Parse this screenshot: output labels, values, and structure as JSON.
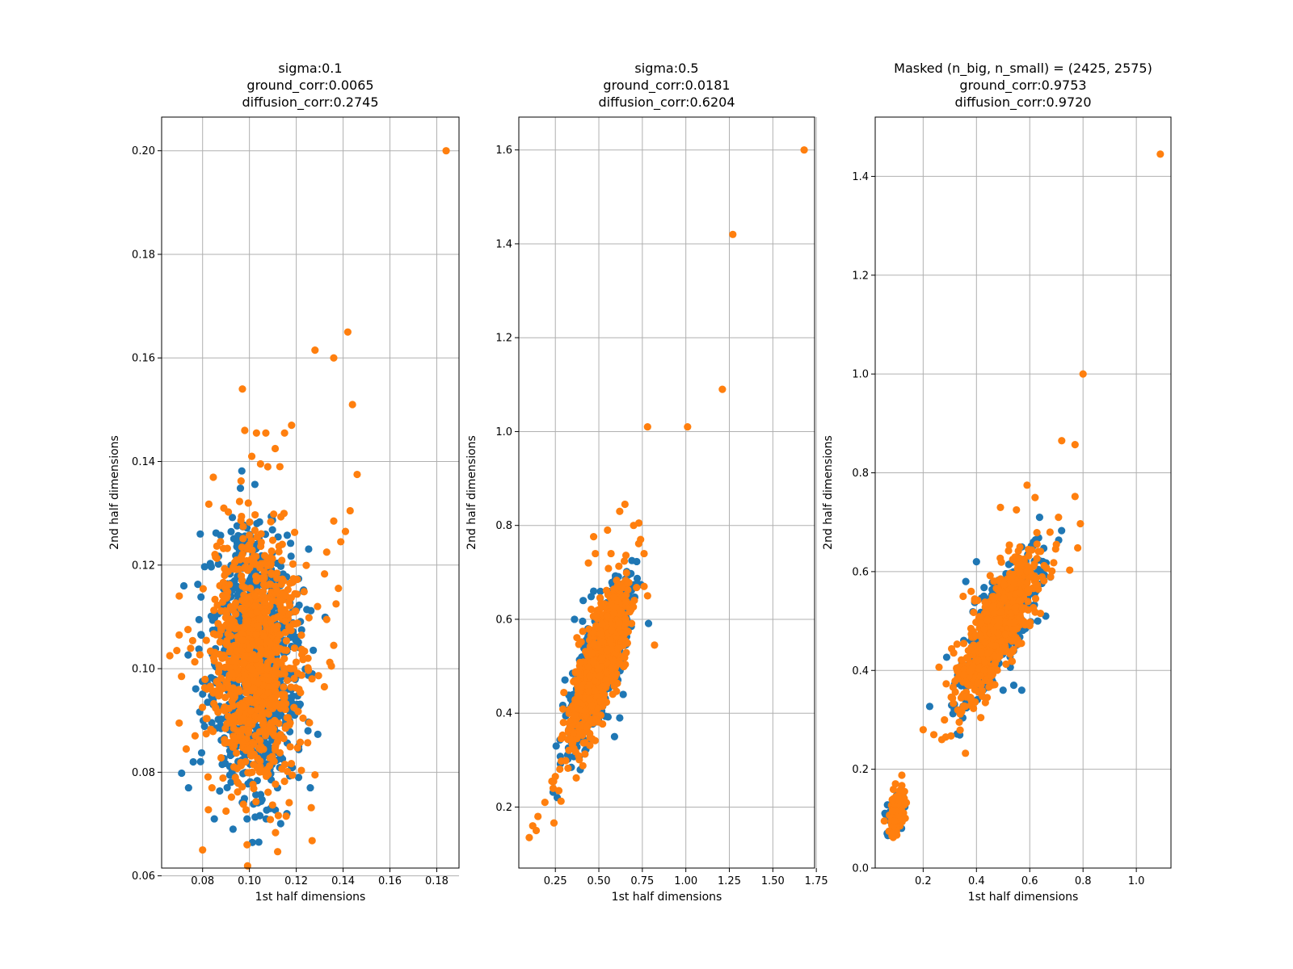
{
  "colors": {
    "blue": "#1f77b4",
    "orange": "#ff7f0e",
    "grid": "#b0b0b0",
    "frame": "#000000"
  },
  "chart_data": [
    {
      "type": "scatter",
      "title_lines": [
        "sigma:0.1",
        "ground_corr:0.0065",
        "diffusion_corr:0.2745"
      ],
      "xlabel": "1st half dimensions",
      "ylabel": "2nd half dimensions",
      "xlim": [
        0.0625,
        0.1895
      ],
      "ylim": [
        0.0615,
        0.2065
      ],
      "xticks": [
        0.08,
        0.1,
        0.12,
        0.14,
        0.16,
        0.18
      ],
      "xtick_labels": [
        "0.08",
        "0.10",
        "0.12",
        "0.14",
        "0.16",
        "0.18"
      ],
      "yticks": [
        0.06,
        0.08,
        0.1,
        0.12,
        0.14,
        0.16,
        0.18,
        0.2
      ],
      "ytick_labels": [
        "0.06",
        "0.08",
        "0.10",
        "0.12",
        "0.14",
        "0.16",
        "0.18",
        "0.20"
      ],
      "grid": true,
      "cluster": {
        "cx": 0.102,
        "cy": 0.102,
        "sx": 0.0095,
        "sy": 0.012,
        "rho": 0.0,
        "n_blue": 900,
        "n_orange": 900
      },
      "series": [
        {
          "color": "blue",
          "points": [
            [
              0.072,
              0.116
            ],
            [
              0.079,
              0.126
            ],
            [
              0.074,
              0.077
            ],
            [
              0.076,
              0.082
            ],
            [
              0.085,
              0.071
            ],
            [
              0.093,
              0.069
            ],
            [
              0.099,
              0.071
            ],
            [
              0.104,
              0.0665
            ],
            [
              0.109,
              0.073
            ],
            [
              0.112,
              0.077
            ],
            [
              0.116,
              0.072
            ],
            [
              0.118,
              0.081
            ],
            [
              0.121,
              0.085
            ],
            [
              0.125,
              0.088
            ],
            [
              0.126,
              0.077
            ],
            [
              0.121,
              0.079
            ]
          ]
        },
        {
          "color": "orange",
          "points": [
            [
              0.184,
              0.2
            ],
            [
              0.142,
              0.165
            ],
            [
              0.136,
              0.16
            ],
            [
              0.128,
              0.1615
            ],
            [
              0.144,
              0.151
            ],
            [
              0.097,
              0.154
            ],
            [
              0.146,
              0.1375
            ],
            [
              0.143,
              0.1305
            ],
            [
              0.141,
              0.1265
            ],
            [
              0.139,
              0.1245
            ],
            [
              0.136,
              0.1285
            ],
            [
              0.133,
              0.1225
            ],
            [
              0.138,
              0.1155
            ],
            [
              0.137,
              0.1125
            ],
            [
              0.133,
              0.1095
            ],
            [
              0.136,
              0.1045
            ],
            [
              0.135,
              0.1005
            ],
            [
              0.132,
              0.0965
            ],
            [
              0.128,
              0.0795
            ],
            [
              0.069,
              0.1035
            ],
            [
              0.066,
              0.1025
            ],
            [
              0.07,
              0.1065
            ],
            [
              0.071,
              0.0985
            ],
            [
              0.07,
              0.0895
            ],
            [
              0.073,
              0.0845
            ],
            [
              0.08,
              0.065
            ],
            [
              0.099,
              0.066
            ],
            [
              0.09,
              0.0725
            ],
            [
              0.094,
              0.079
            ],
            [
              0.084,
              0.077
            ],
            [
              0.098,
              0.146
            ],
            [
              0.103,
              0.1455
            ],
            [
              0.107,
              0.1455
            ],
            [
              0.115,
              0.1455
            ],
            [
              0.118,
              0.147
            ],
            [
              0.101,
              0.141
            ],
            [
              0.111,
              0.1425
            ],
            [
              0.113,
              0.139
            ]
          ]
        }
      ]
    },
    {
      "type": "scatter",
      "title_lines": [
        "sigma:0.5",
        "ground_corr:0.0181",
        "diffusion_corr:0.6204"
      ],
      "xlabel": "1st half dimensions",
      "ylabel": "2nd half dimensions",
      "xlim": [
        0.04,
        1.74
      ],
      "ylim": [
        0.07,
        1.67
      ],
      "xticks": [
        0.25,
        0.5,
        0.75,
        1.0,
        1.25,
        1.5,
        1.75
      ],
      "xtick_labels": [
        "0.25",
        "0.50",
        "0.75",
        "1.00",
        "1.25",
        "1.50",
        "1.75"
      ],
      "yticks": [
        0.2,
        0.4,
        0.6,
        0.8,
        1.0,
        1.2,
        1.4,
        1.6
      ],
      "ytick_labels": [
        "0.2",
        "0.4",
        "0.6",
        "0.8",
        "1.0",
        "1.2",
        "1.4",
        "1.6"
      ],
      "grid": true,
      "cluster": {
        "cx": 0.5,
        "cy": 0.5,
        "sx": 0.085,
        "sy": 0.085,
        "rho": 0.78,
        "n_blue": 700,
        "n_orange": 900
      },
      "series": [
        {
          "color": "blue",
          "points": [
            [
              0.59,
              0.35
            ],
            [
              0.62,
              0.39
            ],
            [
              0.36,
              0.6
            ],
            [
              0.41,
              0.64
            ],
            [
              0.47,
              0.66
            ],
            [
              0.64,
              0.44
            ]
          ]
        },
        {
          "color": "orange",
          "points": [
            [
              1.68,
              1.6
            ],
            [
              1.27,
              1.42
            ],
            [
              1.21,
              1.09
            ],
            [
              1.01,
              1.01
            ],
            [
              0.78,
              1.01
            ],
            [
              0.65,
              0.845
            ],
            [
              0.62,
              0.83
            ],
            [
              0.73,
              0.805
            ],
            [
              0.7,
              0.8
            ],
            [
              0.82,
              0.545
            ],
            [
              0.78,
              0.65
            ],
            [
              0.76,
              0.67
            ],
            [
              0.76,
              0.74
            ],
            [
              0.74,
              0.77
            ],
            [
              0.1,
              0.135
            ],
            [
              0.12,
              0.16
            ],
            [
              0.14,
              0.15
            ],
            [
              0.15,
              0.18
            ],
            [
              0.19,
              0.21
            ],
            [
              0.23,
              0.255
            ],
            [
              0.25,
              0.265
            ],
            [
              0.24,
              0.255
            ],
            [
              0.27,
              0.235
            ],
            [
              0.47,
              0.776
            ],
            [
              0.55,
              0.79
            ],
            [
              0.57,
              0.74
            ],
            [
              0.44,
              0.72
            ],
            [
              0.48,
              0.74
            ]
          ]
        }
      ]
    },
    {
      "type": "scatter",
      "title_lines": [
        "Masked (n_big, n_small) = (2425, 2575)",
        "ground_corr:0.9753",
        "diffusion_corr:0.9720"
      ],
      "xlabel": "1st half dimensions",
      "ylabel": "2nd half dimensions",
      "xlim": [
        0.02,
        1.13
      ],
      "ylim": [
        0.0,
        1.52
      ],
      "xticks": [
        0.2,
        0.4,
        0.6,
        0.8,
        1.0
      ],
      "xtick_labels": [
        "0.2",
        "0.4",
        "0.6",
        "0.8",
        "1.0"
      ],
      "yticks": [
        0.0,
        0.2,
        0.4,
        0.6,
        0.8,
        1.0,
        1.2,
        1.4
      ],
      "ytick_labels": [
        "0.0",
        "0.2",
        "0.4",
        "0.6",
        "0.8",
        "1.0",
        "1.2",
        "1.4"
      ],
      "grid": true,
      "cluster": {
        "cx": 0.48,
        "cy": 0.49,
        "sx": 0.075,
        "sy": 0.075,
        "rho": 0.78,
        "n_blue": 500,
        "n_orange": 700
      },
      "cluster2": {
        "cx": 0.1,
        "cy": 0.11,
        "sx": 0.014,
        "sy": 0.018,
        "rho": 0.3,
        "n_blue": 80,
        "n_orange": 160
      },
      "series": [
        {
          "color": "blue",
          "points": [
            [
              0.57,
              0.36
            ],
            [
              0.54,
              0.37
            ],
            [
              0.5,
              0.36
            ],
            [
              0.66,
              0.51
            ],
            [
              0.63,
              0.5
            ],
            [
              0.36,
              0.58
            ],
            [
              0.4,
              0.62
            ]
          ]
        },
        {
          "color": "orange",
          "points": [
            [
              1.09,
              1.445
            ],
            [
              0.8,
              1.0
            ],
            [
              0.72,
              0.865
            ],
            [
              0.77,
              0.857
            ],
            [
              0.77,
              0.752
            ],
            [
              0.79,
              0.697
            ],
            [
              0.78,
              0.648
            ],
            [
              0.75,
              0.603
            ],
            [
              0.7,
              0.655
            ],
            [
              0.69,
              0.618
            ],
            [
              0.59,
              0.775
            ],
            [
              0.49,
              0.73
            ],
            [
              0.55,
              0.725
            ],
            [
              0.62,
              0.75
            ],
            [
              0.2,
              0.28
            ],
            [
              0.24,
              0.27
            ],
            [
              0.27,
              0.26
            ],
            [
              0.28,
              0.3
            ],
            [
              0.33,
              0.32
            ],
            [
              0.12,
              0.188
            ],
            [
              0.12,
              0.167
            ],
            [
              0.13,
              0.155
            ],
            [
              0.35,
              0.55
            ],
            [
              0.38,
              0.56
            ]
          ]
        }
      ]
    }
  ]
}
